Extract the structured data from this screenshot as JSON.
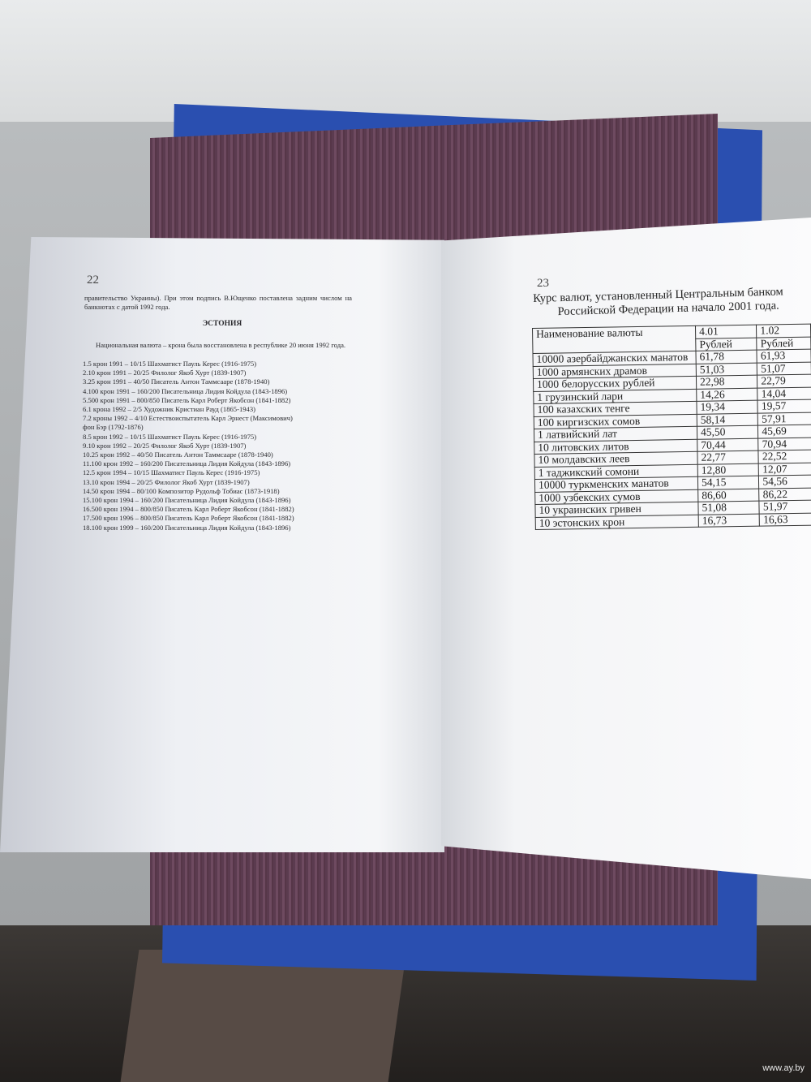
{
  "left_page": {
    "page_number": "22",
    "intro": "правительство Украины). При этом подпись В.Ющенко поставлена задним числом на банкнотах с датой 1992 года.",
    "heading": "ЭСТОНИЯ",
    "paragraph": "Национальная валюта – крона была восстановлена в республике 20 июня 1992 года.",
    "items": [
      "1.5 крон 1991 – 10/15 Шахматист Пауль Керес (1916-1975)",
      "2.10 крон 1991 – 20/25 Филолог Якоб Хурт (1839-1907)",
      "3.25 крон 1991 – 40/50 Писатель Антон Таммсааре  (1878-1940)",
      "4.100 крон 1991 – 160/200 Писательница Лидия Койдула (1843-1896)",
      "5.500 крон 1991 – 800/850 Писатель Карл Роберт Якобсон (1841-1882)",
      "6.1 крона 1992 – 2/5 Художник Кристиан Рауд (1865-1943)",
      "7.2 кроны 1992 – 4/10 Естествоиспытатель Карл Эрнест (Максимович)",
      "фон Бэр (1792-1876)",
      "8.5 крон 1992 – 10/15 Шахматист Пауль Керес (1916-1975)",
      "9.10 крон 1992 – 20/25 Филолог Якоб Хурт (1839-1907)",
      "10.25 крон 1992 – 40/50 Писатель Антон Таммсааре  (1878-1940)",
      "11.100 крон 1992 – 160/200 Писательница Лидия Койдула (1843-1896)",
      "12.5 крон 1994 – 10/15 Шахматист Пауль Керес (1916-1975)",
      "13.10 крон 1994 – 20/25 Филолог Якоб Хурт (1839-1907)",
      "14.50 крон 1994 – 80/100 Композитор Рудольф Тобиас (1873-1918)",
      "15.100 крон 1994 – 160/200 Писательница Лидия Койдула (1843-1896)",
      "16.500 крон 1994 – 800/850 Писатель Карл Роберт Якобсон (1841-1882)",
      "17.500 крон 1996 – 800/850 Писатель Карл Роберт Якобсон (1841-1882)",
      "18.100 крон 1999 – 160/200 Писательница Лидия Койдула (1843-1896)"
    ]
  },
  "right_page": {
    "page_number": "23",
    "title_line1": "Курс валют, установленный Центральным банком",
    "title_line2": "Российской Федерации на начало 2001 года.",
    "table": {
      "header_name": "Наименование валюты",
      "dates": [
        "4.01",
        "1.02"
      ],
      "units": [
        "Рублей",
        "Рублей"
      ],
      "rows": [
        [
          "10000 азербайджанских манатов",
          "61,78",
          "61,93"
        ],
        [
          "1000 армянских драмов",
          "51,03",
          "51,07"
        ],
        [
          "1000 белорусских рублей",
          "22,98",
          "22,79"
        ],
        [
          "1 грузинский лари",
          "14,26",
          "14,04"
        ],
        [
          "100 казахских тенге",
          "19,34",
          "19,57"
        ],
        [
          "100 киргизских сомов",
          "58,14",
          "57,91"
        ],
        [
          "1 латвийский лат",
          "45,50",
          "45,69"
        ],
        [
          "10 литовских литов",
          "70,44",
          "70,94"
        ],
        [
          "10 молдавских леев",
          "22,77",
          "22,52"
        ],
        [
          "1 таджикский сомони",
          "12,80",
          "12,07"
        ],
        [
          "10000 туркменских манатов",
          "54,15",
          "54,56"
        ],
        [
          "1000 узбекских сумов",
          "86,60",
          "86,22"
        ],
        [
          "10 украинских гривен",
          "51,08",
          "51,97"
        ],
        [
          "10 эстонских крон",
          "16,73",
          "16,63"
        ]
      ]
    }
  },
  "watermark": "www.ay.by"
}
